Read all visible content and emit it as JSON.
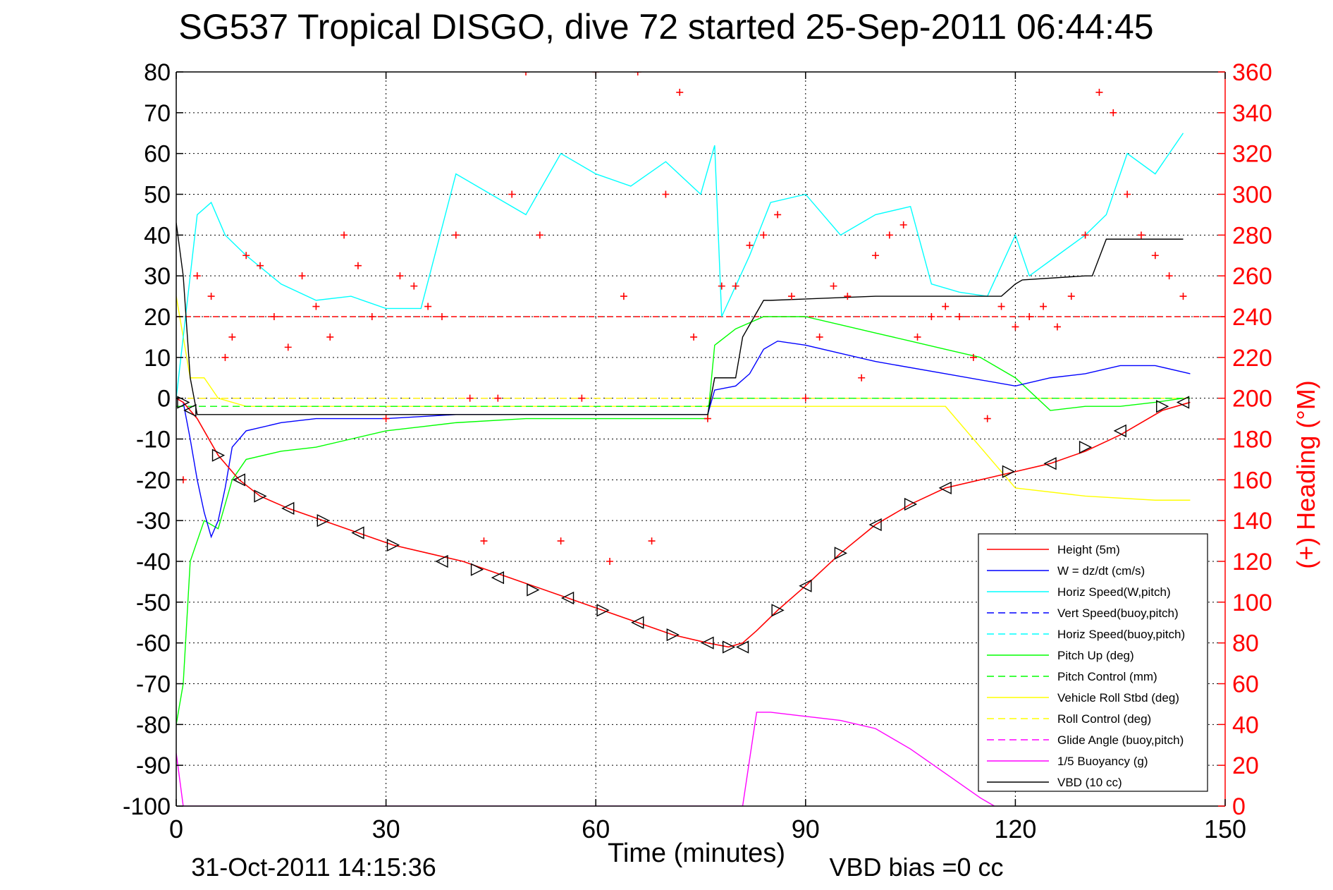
{
  "chart_data": {
    "type": "line",
    "title": "SG537 Tropical DISGO, dive 72 started 25-Sep-2011 06:44:45",
    "xlabel": "Time (minutes)",
    "y2label": "(+) Heading (°M)",
    "footer_left": "31-Oct-2011 14:15:36",
    "footer_right": "VBD bias =0 cc",
    "xlim": [
      0,
      150
    ],
    "ylim": [
      -100,
      80
    ],
    "y2lim": [
      0,
      360
    ],
    "x_ticks": [
      0,
      30,
      60,
      90,
      120,
      150
    ],
    "y_ticks": [
      80,
      70,
      60,
      50,
      40,
      30,
      20,
      10,
      0,
      -10,
      -20,
      -30,
      -40,
      -50,
      -60,
      -70,
      -80,
      -90,
      -100
    ],
    "y2_ticks": [
      360,
      340,
      320,
      300,
      280,
      260,
      240,
      220,
      200,
      180,
      160,
      140,
      120,
      100,
      80,
      60,
      40,
      20,
      0
    ],
    "grid": true,
    "legend_position": "bottom-right",
    "colors": {
      "height": "#ff0000",
      "w": "#0000ff",
      "horiz_speed": "#00ffff",
      "vert_speed_buoy": "#0000ff",
      "horiz_speed_buoy": "#00ffff",
      "pitch": "#00ff00",
      "pitch_control": "#00ff00",
      "roll": "#ffff00",
      "roll_control": "#ffff00",
      "glide_angle": "#ff00ff",
      "buoyancy": "#ff00ff",
      "vbd": "#000000",
      "heading": "#ff0000",
      "heading_axis": "#ff0000"
    },
    "series": [
      {
        "name": "Height (5m)",
        "key": "height",
        "style": "solid",
        "x": [
          0,
          1,
          3,
          6,
          9,
          12,
          16,
          21,
          26,
          31,
          36,
          41,
          46,
          51,
          56,
          61,
          66,
          71,
          76,
          79,
          81,
          83,
          86,
          90,
          95,
          100,
          105,
          110,
          115,
          120,
          125,
          130,
          135,
          141,
          145
        ],
        "y": [
          0,
          -1,
          -5,
          -14,
          -20,
          -24,
          -27,
          -30,
          -33,
          -36,
          -38,
          -40,
          -43,
          -46,
          -49,
          -52,
          -55,
          -58,
          -60,
          -61,
          -60,
          -57,
          -52,
          -46,
          -38,
          -31,
          -26,
          -22,
          -20,
          -18,
          -16,
          -13,
          -9,
          -3,
          -1
        ]
      },
      {
        "name": "W = dz/dt (cm/s)",
        "key": "w",
        "style": "solid",
        "x": [
          0,
          1,
          2,
          3,
          4,
          5,
          6,
          7,
          8,
          10,
          15,
          20,
          30,
          40,
          50,
          60,
          70,
          76,
          77,
          80,
          82,
          84,
          86,
          90,
          95,
          100,
          110,
          120,
          125,
          130,
          135,
          140,
          145
        ],
        "y": [
          0,
          -1,
          -10,
          -20,
          -28,
          -34,
          -30,
          -22,
          -12,
          -8,
          -6,
          -5,
          -5,
          -4,
          -4,
          -4,
          -4,
          -4,
          2,
          3,
          6,
          12,
          14,
          13,
          11,
          9,
          6,
          3,
          5,
          6,
          8,
          8,
          6
        ]
      },
      {
        "name": "Horiz Speed(W,pitch)",
        "key": "horiz_speed",
        "style": "solid",
        "x": [
          0,
          2,
          3,
          5,
          7,
          10,
          15,
          20,
          25,
          30,
          35,
          40,
          45,
          50,
          55,
          60,
          65,
          70,
          75,
          77,
          78,
          82,
          85,
          90,
          95,
          100,
          105,
          108,
          112,
          116,
          120,
          122,
          126,
          130,
          133,
          136,
          140,
          144
        ],
        "y": [
          0,
          30,
          45,
          48,
          40,
          35,
          28,
          24,
          25,
          22,
          22,
          55,
          50,
          45,
          60,
          55,
          52,
          58,
          50,
          62,
          20,
          35,
          48,
          50,
          40,
          45,
          47,
          28,
          26,
          25,
          40,
          30,
          35,
          40,
          45,
          60,
          55,
          65
        ]
      },
      {
        "name": "Vert Speed(buoy,pitch)",
        "key": "vert_speed_buoy",
        "style": "dashed",
        "x": [],
        "y": []
      },
      {
        "name": "Horiz Speed(buoy,pitch)",
        "key": "horiz_speed_buoy",
        "style": "dashed",
        "x": [],
        "y": []
      },
      {
        "name": "Pitch Up (deg)",
        "key": "pitch",
        "style": "solid",
        "x": [
          0,
          1,
          2,
          4,
          6,
          8,
          10,
          15,
          20,
          25,
          30,
          35,
          40,
          50,
          60,
          70,
          76,
          77,
          80,
          84,
          90,
          95,
          100,
          105,
          110,
          115,
          120,
          125,
          130,
          135,
          140,
          144
        ],
        "y": [
          -80,
          -70,
          -40,
          -30,
          -32,
          -20,
          -15,
          -13,
          -12,
          -10,
          -8,
          -7,
          -6,
          -5,
          -5,
          -5,
          -5,
          13,
          17,
          20,
          20,
          18,
          16,
          14,
          12,
          10,
          5,
          -3,
          -2,
          -2,
          -1,
          0
        ]
      },
      {
        "name": "Pitch Control (mm)",
        "key": "pitch_control",
        "style": "dashed",
        "x": [
          0,
          76,
          77,
          145
        ],
        "y": [
          -2,
          -2,
          0,
          0
        ]
      },
      {
        "name": "Vehicle Roll Stbd (deg)",
        "key": "roll",
        "style": "solid",
        "x": [
          0,
          2,
          4,
          6,
          10,
          20,
          30,
          40,
          50,
          60,
          70,
          80,
          90,
          100,
          110,
          120,
          130,
          140,
          145
        ],
        "y": [
          25,
          5,
          5,
          0,
          -2,
          -2,
          -2,
          -2,
          -2,
          -2,
          -2,
          -2,
          -2,
          -2,
          -2,
          -22,
          -24,
          -25,
          -25
        ]
      },
      {
        "name": "Roll Control (deg)",
        "key": "roll_control",
        "style": "dashed",
        "x": [
          0,
          145
        ],
        "y": [
          0,
          0
        ]
      },
      {
        "name": "Glide Angle (buoy,pitch)",
        "key": "glide_angle",
        "style": "dashed",
        "x": [
          0,
          145
        ],
        "y": [
          0,
          0
        ]
      },
      {
        "name": "1/5 Buoyancy (g)",
        "key": "buoyancy",
        "style": "solid",
        "x": [
          0,
          1,
          81,
          83,
          85,
          90,
          95,
          100,
          105,
          110,
          115,
          117
        ],
        "y": [
          -87,
          -100,
          -100,
          -77,
          -77,
          -78,
          -79,
          -81,
          -86,
          -92,
          -98,
          -100
        ]
      },
      {
        "name": "VBD (10 cc)",
        "key": "vbd",
        "style": "solid",
        "x": [
          0,
          1,
          2,
          3,
          76,
          77,
          80,
          81,
          84,
          85,
          100,
          118,
          120,
          121,
          130,
          131,
          133,
          144
        ],
        "y": [
          43,
          30,
          5,
          -4,
          -4,
          5,
          5,
          15,
          24,
          24,
          25,
          25,
          28,
          29,
          30,
          30,
          39,
          39
        ]
      }
    ],
    "heading_series": {
      "name": "Heading",
      "marker": "plus",
      "x": [
        1,
        3,
        5,
        7,
        8,
        10,
        12,
        14,
        16,
        18,
        20,
        22,
        24,
        26,
        28,
        30,
        32,
        34,
        36,
        38,
        40,
        42,
        44,
        46,
        48,
        50,
        52,
        55,
        58,
        60,
        62,
        64,
        66,
        68,
        70,
        72,
        74,
        76,
        78,
        80,
        82,
        84,
        86,
        88,
        90,
        92,
        94,
        96,
        98,
        100,
        102,
        104,
        106,
        108,
        110,
        112,
        114,
        116,
        118,
        120,
        122,
        124,
        126,
        128,
        130,
        132,
        134,
        136,
        138,
        140,
        142,
        144
      ],
      "y": [
        160,
        260,
        250,
        220,
        230,
        270,
        265,
        240,
        225,
        260,
        245,
        230,
        280,
        265,
        240,
        190,
        260,
        255,
        245,
        240,
        280,
        200,
        130,
        200,
        300,
        360,
        280,
        130,
        200,
        360,
        120,
        250,
        360,
        130,
        300,
        350,
        230,
        190,
        255,
        255,
        275,
        280,
        290,
        250,
        200,
        230,
        255,
        250,
        210,
        270,
        280,
        285,
        230,
        240,
        245,
        240,
        220,
        190,
        245,
        235,
        240,
        245,
        235,
        250,
        280,
        350,
        340,
        300,
        280,
        270,
        260,
        250
      ]
    },
    "heading_ref_line": 240,
    "marker_points": {
      "x": [
        1,
        2,
        6,
        9,
        12,
        16,
        21,
        26,
        31,
        38,
        43,
        46,
        51,
        56,
        61,
        66,
        71,
        76,
        79,
        81,
        86,
        90,
        95,
        100,
        105,
        110,
        119,
        125,
        130,
        135,
        141,
        144
      ],
      "y": [
        -1,
        -3,
        -14,
        -20,
        -24,
        -27,
        -30,
        -33,
        -36,
        -40,
        -42,
        -44,
        -47,
        -49,
        -52,
        -55,
        -58,
        -60,
        -61,
        -61,
        -52,
        -46,
        -38,
        -31,
        -26,
        -22,
        -18,
        -16,
        -12,
        -8,
        -2,
        -1
      ]
    }
  }
}
